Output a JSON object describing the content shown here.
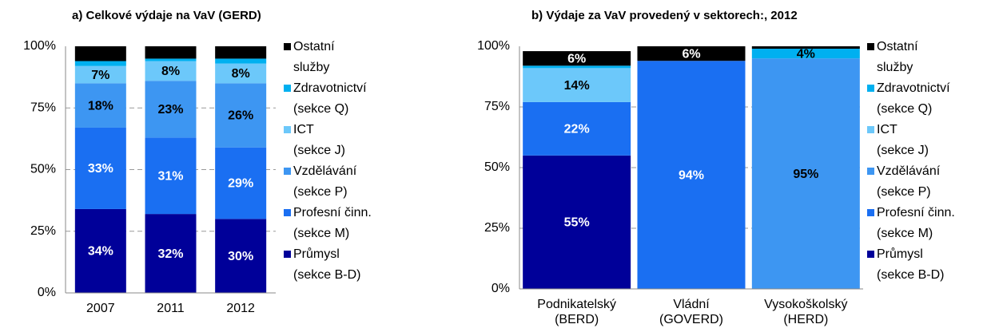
{
  "chart_data": [
    {
      "type": "bar",
      "stacked": true,
      "title": "a) Celkové výdaje na VaV (GERD)",
      "categories": [
        "2007",
        "2011",
        "2012"
      ],
      "ylim": [
        0,
        100
      ],
      "yticks": [
        {
          "value": 0,
          "label": "0%"
        },
        {
          "value": 25,
          "label": "25%"
        },
        {
          "value": 50,
          "label": "50%"
        },
        {
          "value": 75,
          "label": "75%"
        },
        {
          "value": 100,
          "label": "100%"
        }
      ],
      "grid": true,
      "series": [
        {
          "name": "Průmysl\n(sekce B-D)",
          "color": "#000099",
          "label_color": "#ffffff",
          "values": [
            34,
            32,
            30
          ],
          "value_labels": [
            "34%",
            "32%",
            "30%"
          ]
        },
        {
          "name": "Profesní činn.\n(sekce M)",
          "color": "#1a6ff2",
          "label_color": "#ffffff",
          "values": [
            33,
            31,
            29
          ],
          "value_labels": [
            "33%",
            "31%",
            "29%"
          ]
        },
        {
          "name": "Vzdělávání\n(sekce P)",
          "color": "#3d96f2",
          "label_color": "#000000",
          "values": [
            18,
            23,
            26
          ],
          "value_labels": [
            "18%",
            "23%",
            "26%"
          ]
        },
        {
          "name": "ICT\n(sekce J)",
          "color": "#6cc8fa",
          "label_color": "#000000",
          "values": [
            7,
            8,
            8
          ],
          "value_labels": [
            "7%",
            "8%",
            "8%"
          ]
        },
        {
          "name": "Zdravotnictví\n(sekce Q)",
          "color": "#00b0f0",
          "label_color": "#000000",
          "values": [
            2,
            1,
            2
          ],
          "value_labels": [
            null,
            null,
            null
          ]
        },
        {
          "name": "Ostatní\nslužby",
          "color": "#000000",
          "label_color": "#ffffff",
          "values": [
            6,
            5,
            5
          ],
          "value_labels": [
            null,
            null,
            null
          ]
        }
      ]
    },
    {
      "type": "bar",
      "stacked": true,
      "title": "b) Výdaje za VaV provedený v sektorech:, 2012",
      "categories": [
        "Podnikatelský\n(BERD)",
        "Vládní\n(GOVERD)",
        "Vysokoškolský\n(HERD)"
      ],
      "ylim": [
        0,
        100
      ],
      "yticks": [
        {
          "value": 0,
          "label": "0%"
        },
        {
          "value": 25,
          "label": "25%"
        },
        {
          "value": 50,
          "label": "50%"
        },
        {
          "value": 75,
          "label": "75%"
        },
        {
          "value": 100,
          "label": "100%"
        }
      ],
      "grid": true,
      "series": [
        {
          "name": "Průmysl\n(sekce B-D)",
          "color": "#000099",
          "label_color": "#ffffff",
          "values": [
            55,
            0,
            0
          ],
          "value_labels": [
            "55%",
            null,
            null
          ]
        },
        {
          "name": "Profesní činn.\n(sekce M)",
          "color": "#1a6ff2",
          "label_color": "#ffffff",
          "values": [
            22,
            94,
            0
          ],
          "value_labels": [
            "22%",
            "94%",
            null
          ]
        },
        {
          "name": "Vzdělávání\n(sekce P)",
          "color": "#3d96f2",
          "label_color": "#000000",
          "values": [
            0,
            0,
            95
          ],
          "value_labels": [
            null,
            null,
            "95%"
          ]
        },
        {
          "name": "ICT\n(sekce J)",
          "color": "#6cc8fa",
          "label_color": "#000000",
          "values": [
            14,
            0,
            0
          ],
          "value_labels": [
            "14%",
            null,
            null
          ]
        },
        {
          "name": "Zdravotnictví\n(sekce Q)",
          "color": "#00b0f0",
          "label_color": "#000000",
          "values": [
            1,
            0,
            4
          ],
          "value_labels": [
            null,
            null,
            "4%"
          ]
        },
        {
          "name": "Ostatní\nslužby",
          "color": "#000000",
          "label_color": "#ffffff",
          "values": [
            6,
            6,
            1
          ],
          "value_labels": [
            "6%",
            "6%",
            null
          ]
        }
      ]
    }
  ]
}
